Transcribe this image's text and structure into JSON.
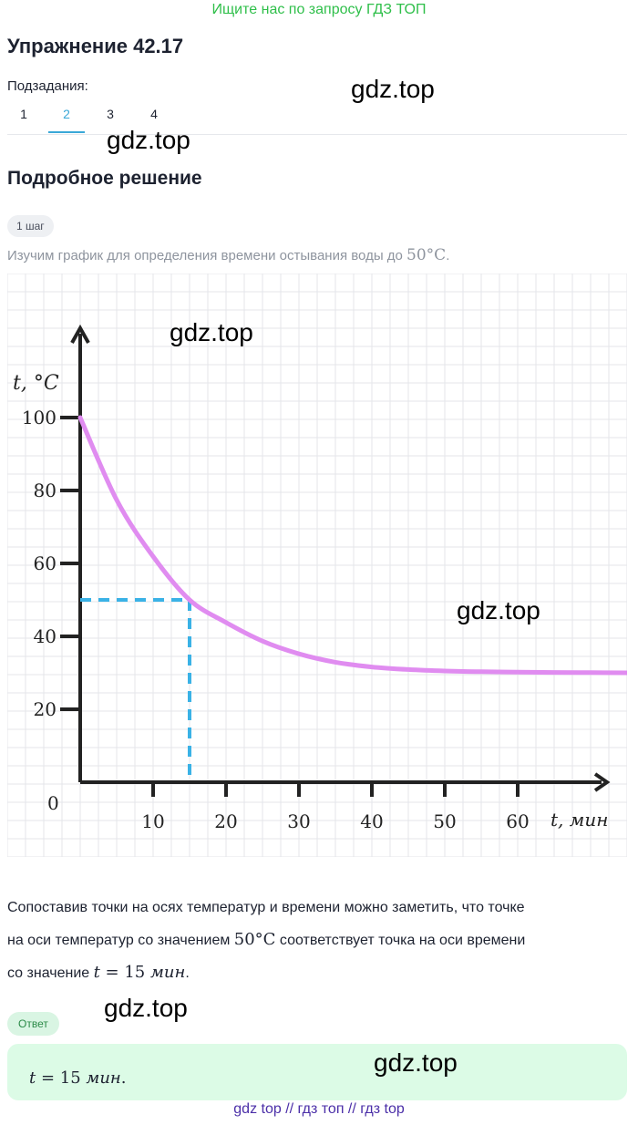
{
  "banner": "Ищите нас по запросу ГДЗ ТОП",
  "title": "Упражнение 42.17",
  "subtasks": {
    "label": "Подзадания:",
    "tabs": [
      "1",
      "2",
      "3",
      "4"
    ],
    "active_index": 1
  },
  "solution": {
    "title": "Подробное решение",
    "step_badge": "1 шаг",
    "step_text_prefix": "Изучим график для определения времени остывания воды до ",
    "step_text_math": "50°C",
    "step_text_suffix": "."
  },
  "chart_data": {
    "type": "line",
    "title": "",
    "xlabel": "t, мин",
    "ylabel": "t, °C",
    "x_ticks": [
      "10",
      "20",
      "30",
      "40",
      "50",
      "60"
    ],
    "y_ticks": [
      "20",
      "40",
      "60",
      "80",
      "100"
    ],
    "origin_label": "0",
    "xlim": [
      0,
      75
    ],
    "ylim": [
      0,
      110
    ],
    "grid": true,
    "series": [
      {
        "x": [
          0,
          5,
          10,
          15,
          20,
          25,
          30,
          35,
          40,
          45,
          50,
          55,
          60,
          65,
          70,
          75
        ],
        "y": [
          100,
          77.4,
          61.9,
          50,
          43.8,
          38.7,
          35.2,
          32.9,
          31.6,
          30.9,
          30.5,
          30.3,
          30.2,
          30.1,
          30.05,
          30.0
        ],
        "color": "#e08cf0"
      }
    ],
    "highlight": {
      "x": 15,
      "y": 50,
      "color": "#3ab2e6"
    }
  },
  "explanation": {
    "line1": "Сопоставив точки на осях температур и времени можно заметить, что точке",
    "line2_prefix": "на оси температур со значением ",
    "line2_math": "50°C",
    "line2_suffix": " соответствует точка на оси времени",
    "line3_prefix": "со значение ",
    "line3_math_var": "t",
    "line3_math_rest": " = 15 ",
    "line3_math_unit": "мин",
    "line3_suffix": "."
  },
  "answer": {
    "badge": "Ответ",
    "math_var": "t",
    "math_rest": " = 15 ",
    "math_unit": "мин",
    "suffix": "."
  },
  "watermarks": [
    "gdz.top",
    "gdz.top",
    "gdz.top",
    "gdz.top",
    "gdz.top",
    "gdz.top"
  ],
  "footer": "gdz top  //  гдз топ  //  гдз top"
}
